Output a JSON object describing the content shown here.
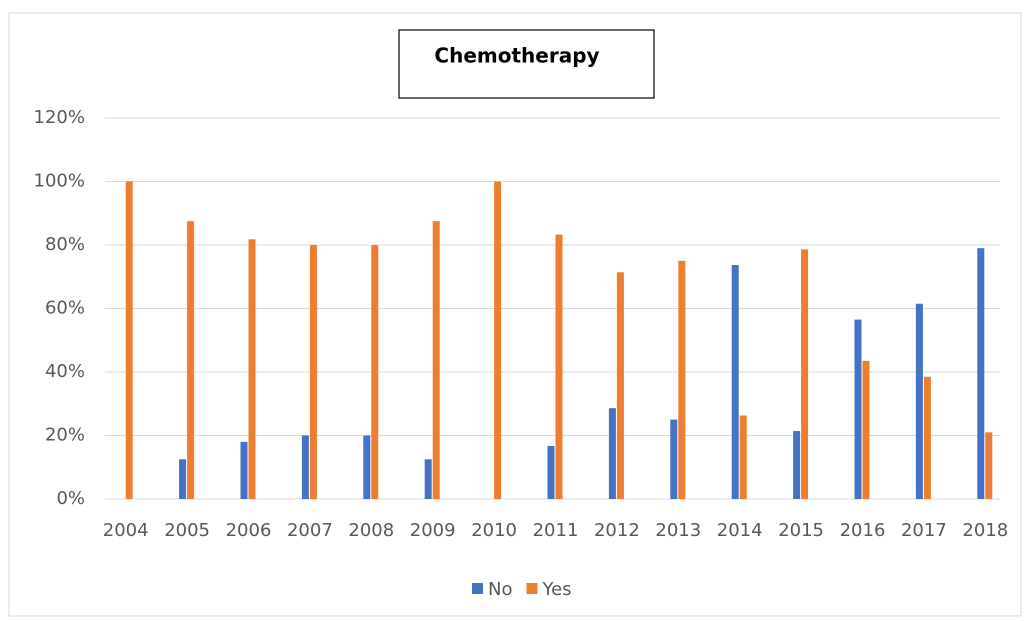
{
  "chart_data": {
    "type": "bar",
    "title": "Chemotherapy",
    "categories": [
      "2004",
      "2005",
      "2006",
      "2007",
      "2008",
      "2009",
      "2010",
      "2011",
      "2012",
      "2013",
      "2014",
      "2015",
      "2016",
      "2017",
      "2018"
    ],
    "series": [
      {
        "name": "No",
        "color": "#4472c4",
        "values": [
          0,
          12.5,
          18,
          20,
          20,
          12.5,
          0,
          16.7,
          28.6,
          25,
          73.7,
          21.4,
          56.5,
          61.5,
          79
        ]
      },
      {
        "name": "Yes",
        "color": "#ed7d31",
        "values": [
          100,
          87.5,
          81.8,
          80,
          80,
          87.5,
          100,
          83.3,
          71.4,
          75,
          26.3,
          78.6,
          43.5,
          38.5,
          21
        ]
      }
    ],
    "ylim": [
      0,
      120
    ],
    "yticks": [
      {
        "value": 0,
        "label": "0%"
      },
      {
        "value": 20,
        "label": "20%"
      },
      {
        "value": 40,
        "label": "40%"
      },
      {
        "value": 60,
        "label": "60%"
      },
      {
        "value": 80,
        "label": "80%"
      },
      {
        "value": 100,
        "label": "100%"
      },
      {
        "value": 120,
        "label": "120%"
      }
    ],
    "grid": true,
    "legend": "bottom"
  }
}
